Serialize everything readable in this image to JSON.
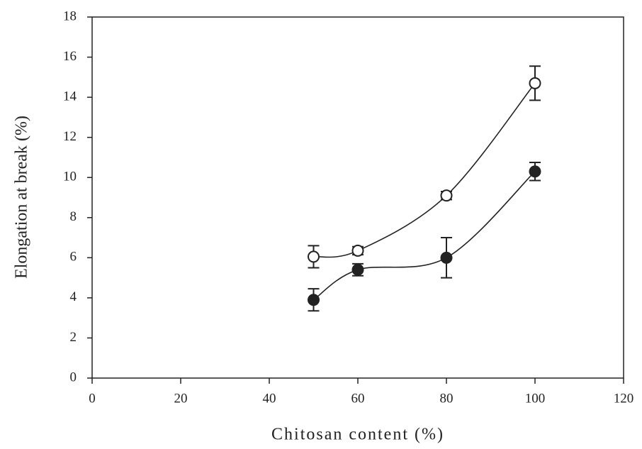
{
  "chart_data": {
    "type": "scatter",
    "x_label": "Chitosan content (%)",
    "y_label": "Elongation at break (%)",
    "xlim": [
      0,
      120
    ],
    "xticks": [
      0,
      20,
      40,
      60,
      80,
      100,
      120
    ],
    "ylim": [
      0,
      18
    ],
    "yticks": [
      0,
      2,
      4,
      6,
      8,
      10,
      12,
      14,
      16,
      18
    ],
    "smooth_lines": true,
    "series": [
      {
        "marker": "open",
        "color": "#222222",
        "x": [
          50,
          60,
          80,
          100
        ],
        "values": [
          6.05,
          6.35,
          9.1,
          14.7
        ],
        "errors": [
          0.55,
          0.2,
          0.2,
          0.85
        ]
      },
      {
        "marker": "filled",
        "color": "#222222",
        "x": [
          50,
          60,
          80,
          100
        ],
        "values": [
          3.9,
          5.4,
          6.0,
          10.3
        ],
        "errors": [
          0.55,
          0.3,
          1.0,
          0.45
        ]
      }
    ]
  }
}
